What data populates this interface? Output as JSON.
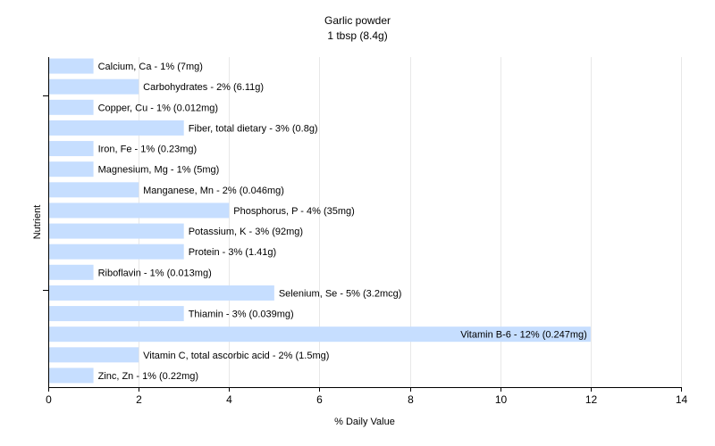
{
  "chart_data": {
    "type": "bar",
    "orientation": "horizontal",
    "title": "Garlic powder",
    "subtitle": "1 tbsp (8.4g)",
    "xlabel": "% Daily Value",
    "ylabel": "Nutrient",
    "xlim": [
      0,
      14
    ],
    "xticks": [
      0,
      2,
      4,
      6,
      8,
      10,
      12,
      14
    ],
    "grid": true,
    "bar_color": "#c6deff",
    "gridline_color": "#e8e8e8",
    "bars": [
      {
        "value": 1,
        "label": "Calcium, Ca - 1% (7mg)"
      },
      {
        "value": 2,
        "label": "Carbohydrates - 2% (6.11g)"
      },
      {
        "value": 1,
        "label": "Copper, Cu - 1% (0.012mg)"
      },
      {
        "value": 3,
        "label": "Fiber, total dietary - 3% (0.8g)"
      },
      {
        "value": 1,
        "label": "Iron, Fe - 1% (0.23mg)"
      },
      {
        "value": 1,
        "label": "Magnesium, Mg - 1% (5mg)"
      },
      {
        "value": 2,
        "label": "Manganese, Mn - 2% (0.046mg)"
      },
      {
        "value": 4,
        "label": "Phosphorus, P - 4% (35mg)"
      },
      {
        "value": 3,
        "label": "Potassium, K - 3% (92mg)"
      },
      {
        "value": 3,
        "label": "Protein - 3% (1.41g)"
      },
      {
        "value": 1,
        "label": "Riboflavin - 1% (0.013mg)"
      },
      {
        "value": 5,
        "label": "Selenium, Se - 5% (3.2mcg)"
      },
      {
        "value": 3,
        "label": "Thiamin - 3% (0.039mg)"
      },
      {
        "value": 12,
        "label": "Vitamin B-6 - 12% (0.247mg)"
      },
      {
        "value": 2,
        "label": "Vitamin C, total ascorbic acid - 2% (1.5mg)"
      },
      {
        "value": 1,
        "label": "Zinc, Zn - 1% (0.22mg)"
      }
    ]
  }
}
